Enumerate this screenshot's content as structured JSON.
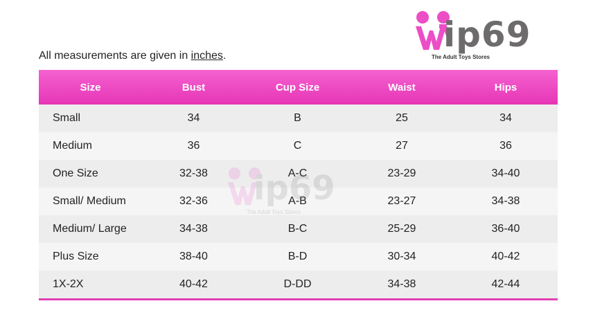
{
  "brand": {
    "name": "ip69",
    "tagline": "The Adult Toys Stores",
    "logo_initial": "W",
    "color_pink": "#ec4ec6",
    "color_gray": "#6d6b6c"
  },
  "note": {
    "prefix": "All measurements are given in ",
    "unit": "inches",
    "suffix": "."
  },
  "table": {
    "header_color": "#ee4cc6",
    "columns": [
      "Size",
      "Bust",
      "Cup Size",
      "Waist",
      "Hips"
    ],
    "rows": [
      [
        "Small",
        "34",
        "B",
        "25",
        "34"
      ],
      [
        "Medium",
        "36",
        "C",
        "27",
        "36"
      ],
      [
        "One Size",
        "32-38",
        "A-C",
        "23-29",
        "34-40"
      ],
      [
        "Small/ Medium",
        "32-36",
        "A-B",
        "23-27",
        "34-38"
      ],
      [
        "Medium/ Large",
        "34-38",
        "B-C",
        "25-29",
        "36-40"
      ],
      [
        "Plus Size",
        "38-40",
        "B-D",
        "30-34",
        "40-42"
      ],
      [
        "1X-2X",
        "40-42",
        "D-DD",
        "34-38",
        "42-44"
      ]
    ]
  }
}
